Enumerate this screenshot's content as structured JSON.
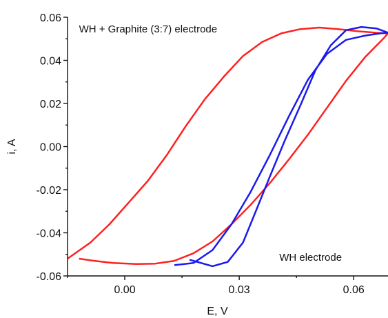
{
  "chart_data": {
    "type": "line",
    "xlabel": "E, V",
    "ylabel": "i, A",
    "xlim": [
      -0.015,
      0.069
    ],
    "ylim": [
      -0.06,
      0.06
    ],
    "x_ticks": [
      0.0,
      0.03,
      0.06
    ],
    "x_tick_labels": [
      "0.00",
      "0.03",
      "0.06"
    ],
    "y_ticks": [
      -0.06,
      -0.04,
      -0.02,
      0.0,
      0.02,
      0.04,
      0.06
    ],
    "y_tick_labels": [
      "-0.06",
      "-0.04",
      "-0.02",
      "0.00",
      "0.02",
      "0.04",
      "0.06"
    ],
    "grid": false,
    "annotations": [
      {
        "text": "WH + Graphite (3:7) electrode",
        "x": -0.012,
        "y": 0.053
      },
      {
        "text": "WH electrode",
        "x": 0.0405,
        "y": -0.053
      }
    ],
    "series": [
      {
        "color": "#ff2020",
        "x": [
          -0.012,
          -0.008,
          -0.003,
          0.003,
          0.008,
          0.013,
          0.018,
          0.023,
          0.028,
          0.033,
          0.038,
          0.043,
          0.048,
          0.053,
          0.058,
          0.063,
          0.068,
          0.069,
          0.066,
          0.061,
          0.056,
          0.051,
          0.046,
          0.041,
          0.036,
          0.031,
          0.026,
          0.021,
          0.016,
          0.011,
          0.006,
          0.001,
          -0.004,
          -0.009,
          -0.015
        ],
        "y": [
          -0.052,
          -0.053,
          -0.054,
          -0.0545,
          -0.0543,
          -0.053,
          -0.0495,
          -0.044,
          -0.036,
          -0.027,
          -0.017,
          -0.006,
          0.0055,
          0.018,
          0.0305,
          0.0415,
          0.0505,
          0.0525,
          0.0528,
          0.0535,
          0.0545,
          0.0552,
          0.0545,
          0.0525,
          0.0485,
          0.042,
          0.0325,
          0.022,
          0.0095,
          -0.004,
          -0.016,
          -0.026,
          -0.036,
          -0.0445,
          -0.052
        ]
      },
      {
        "color": "#1a1aee",
        "x": [
          0.013,
          0.018,
          0.023,
          0.028,
          0.033,
          0.038,
          0.043,
          0.048,
          0.053,
          0.058,
          0.063,
          0.067,
          0.069,
          0.068,
          0.066,
          0.062,
          0.058,
          0.054,
          0.05,
          0.046,
          0.042,
          0.038,
          0.034,
          0.031,
          0.027,
          0.023,
          0.017
        ],
        "y": [
          -0.055,
          -0.054,
          -0.048,
          -0.036,
          -0.021,
          -0.004,
          0.014,
          0.031,
          0.043,
          0.0495,
          0.0515,
          0.0525,
          0.0528,
          0.0535,
          0.0548,
          0.0555,
          0.054,
          0.047,
          0.0355,
          0.019,
          0.003,
          -0.014,
          -0.0315,
          -0.0445,
          -0.0535,
          -0.0555,
          -0.0525
        ]
      }
    ]
  }
}
